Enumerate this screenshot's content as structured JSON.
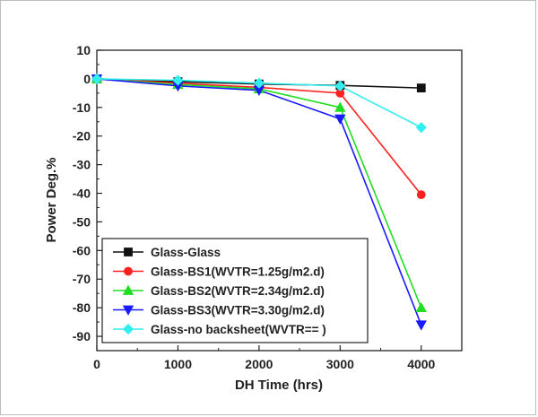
{
  "chart_data": {
    "type": "line",
    "xlabel": "DH Time (hrs)",
    "ylabel": "Power Deg.%",
    "xlim": [
      0,
      4500
    ],
    "ylim": [
      -95,
      10
    ],
    "xticks": [
      0,
      1000,
      2000,
      3000,
      4000
    ],
    "yticks": [
      10,
      0,
      -10,
      -20,
      -30,
      -40,
      -50,
      -60,
      -70,
      -80,
      -90
    ],
    "x": [
      0,
      1000,
      2000,
      3000,
      4000
    ],
    "grid": false,
    "legend_placement": "lower-left",
    "series": [
      {
        "name": "Glass-Glass",
        "color": "#111111",
        "marker": "square",
        "values": [
          0,
          -1,
          -1.8,
          -2.3,
          -3.2
        ]
      },
      {
        "name": "Glass-BS1(WVTR=1.25g/m2.d)",
        "color": "#ff2020",
        "marker": "circle",
        "values": [
          0,
          -1.5,
          -3,
          -5,
          -40.5
        ]
      },
      {
        "name": "Glass-BS2(WVTR=2.34g/m2.d)",
        "color": "#22dd22",
        "marker": "triangle-up",
        "values": [
          0,
          -2,
          -3.5,
          -10,
          -80
        ]
      },
      {
        "name": "Glass-BS3(WVTR=3.30g/m2.d)",
        "color": "#1a1aff",
        "marker": "triangle-down",
        "values": [
          0,
          -2.5,
          -4,
          -14,
          -86
        ]
      },
      {
        "name": "Glass-no backsheet(WVTR== )",
        "color": "#33eeee",
        "marker": "diamond",
        "values": [
          0,
          -0.5,
          -1.5,
          -2.5,
          -17
        ]
      }
    ]
  }
}
